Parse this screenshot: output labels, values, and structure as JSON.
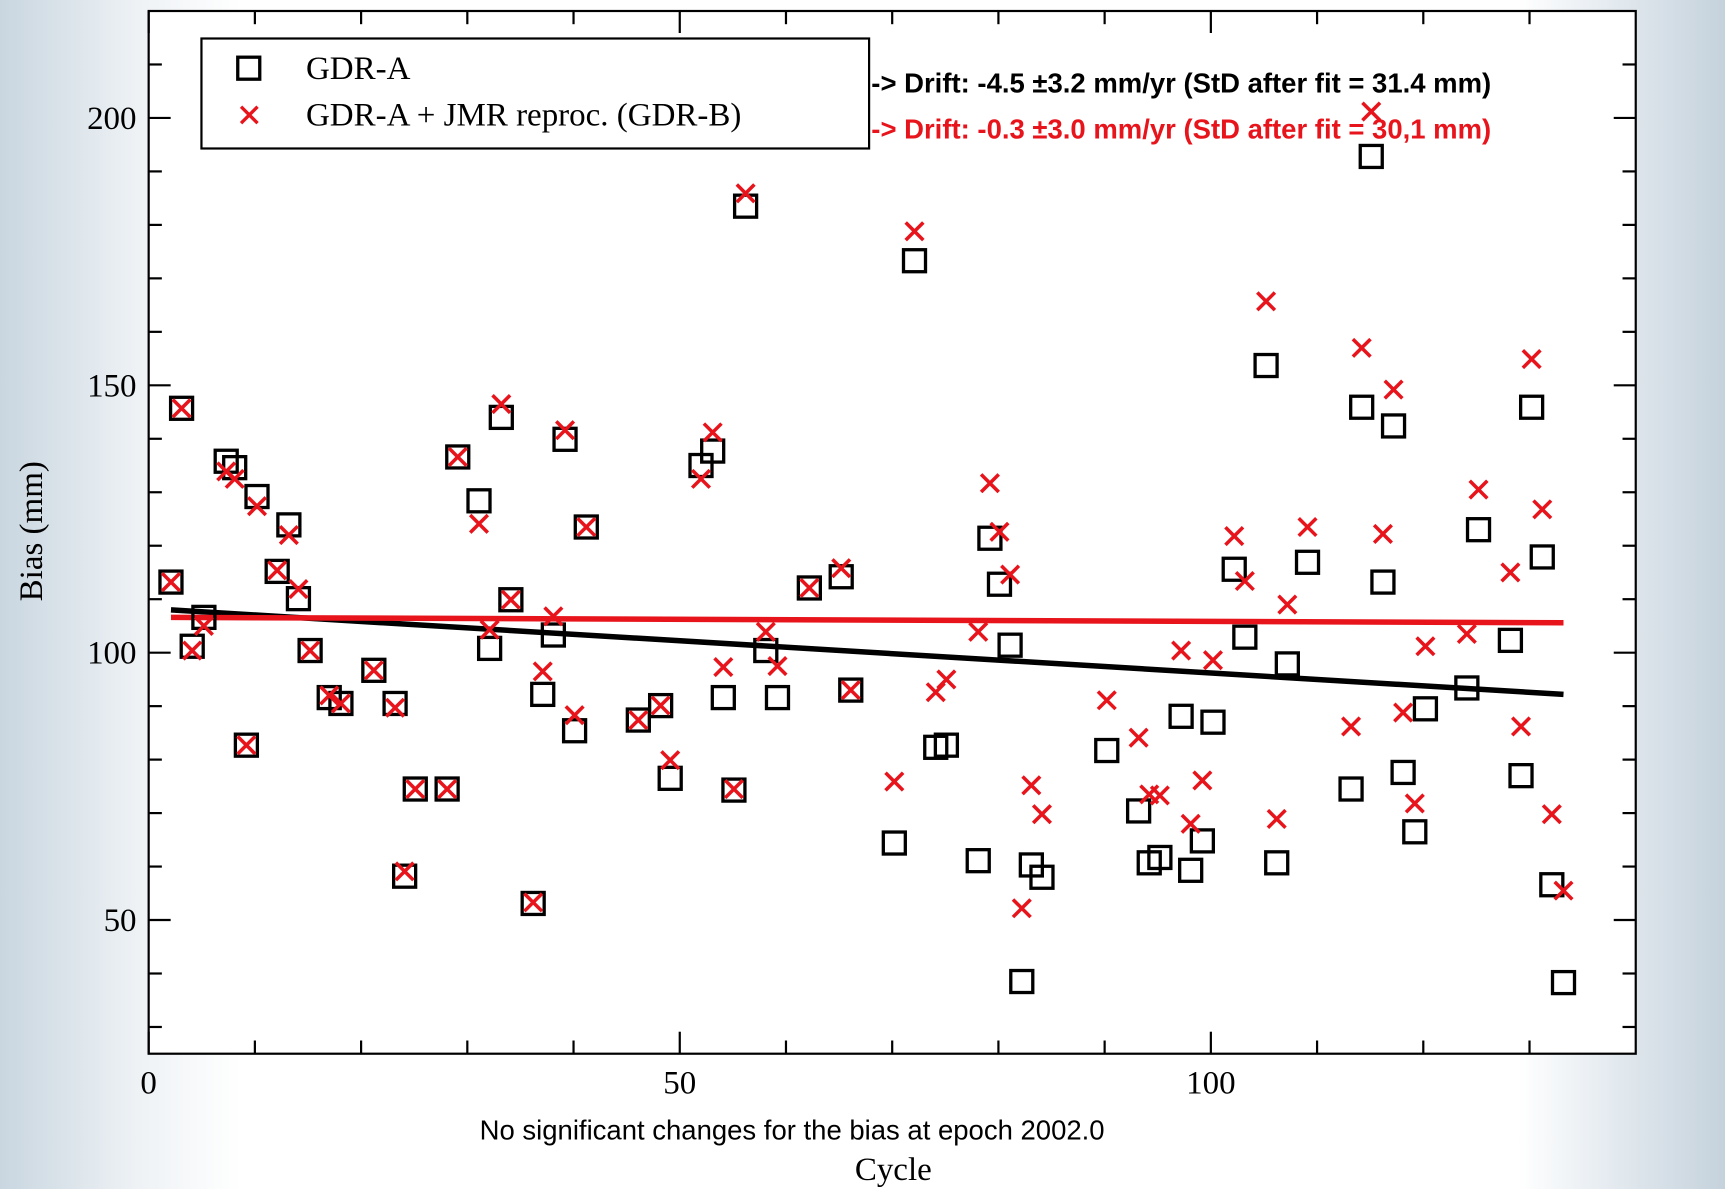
{
  "chart_data": {
    "type": "scatter",
    "x_label": "Cycle",
    "y_label": "Bias (mm)",
    "caption": "No significant changes for the bias at epoch 2002.0",
    "annotations": [
      {
        "text": "-> Drift: -4.5 ±3.2 mm/yr (StD after fit = 31.4 mm)",
        "color": "#000000"
      },
      {
        "text": "-> Drift: -0.3 ±3.0 mm/yr (StD after fit = 30,1 mm)",
        "color": "#e8141c"
      }
    ],
    "xlim": [
      0,
      140
    ],
    "ylim": [
      25,
      220
    ],
    "xticks": [
      0,
      50,
      100
    ],
    "yticks": [
      50,
      100,
      150,
      200
    ],
    "x_minor_ticks": [
      10,
      20,
      30,
      40,
      60,
      70,
      80,
      90,
      110,
      120,
      130
    ],
    "y_minor_ticks": [
      30,
      40,
      60,
      70,
      80,
      90,
      110,
      120,
      130,
      140,
      160,
      170,
      180,
      190,
      210
    ],
    "x": [
      2.1,
      3.1,
      4.1,
      5.2,
      7.3,
      8.1,
      9.2,
      10.2,
      12.1,
      13.2,
      14.1,
      15.2,
      17.0,
      18.1,
      21.2,
      23.2,
      24.1,
      25.1,
      28.1,
      29.1,
      31.1,
      32.1,
      33.2,
      34.1,
      36.2,
      37.1,
      38.1,
      39.2,
      40.1,
      41.2,
      46.1,
      48.2,
      49.1,
      52.0,
      53.1,
      54.1,
      55.1,
      56.2,
      58.1,
      59.2,
      62.2,
      65.2,
      66.1,
      70.2,
      72.1,
      74.1,
      75.1,
      78.1,
      79.2,
      80.1,
      81.1,
      82.2,
      83.1,
      84.1,
      90.2,
      93.2,
      94.2,
      95.2,
      97.2,
      98.1,
      99.2,
      100.2,
      102.2,
      103.2,
      105.2,
      106.2,
      107.2,
      109.1,
      113.2,
      114.2,
      115.1,
      116.2,
      117.2,
      118.1,
      119.2,
      120.2,
      124.1,
      125.2,
      128.2,
      129.2,
      130.2,
      131.2,
      132.1,
      133.2
    ],
    "series": [
      {
        "name": "GDR-A",
        "color": "#000000",
        "marker": "square",
        "values": [
          113.2,
          145.7,
          101.2,
          106.6,
          135.8,
          134.6,
          82.7,
          129.2,
          115.2,
          123.9,
          110.1,
          100.4,
          91.6,
          90.5,
          96.7,
          90.5,
          58.2,
          74.5,
          74.5,
          136.6,
          128.4,
          100.8,
          144.0,
          109.9,
          53.1,
          92.2,
          103.3,
          139.9,
          85.4,
          123.5,
          87.4,
          90.1,
          76.5,
          135.0,
          137.7,
          91.6,
          74.3,
          183.5,
          100.4,
          91.6,
          112.1,
          114.2,
          93.0,
          64.4,
          173.3,
          82.3,
          82.7,
          61.1,
          121.4,
          112.8,
          101.4,
          38.5,
          60.3,
          58.0,
          81.7,
          70.4,
          60.7,
          61.7,
          88.1,
          59.3,
          64.8,
          87.0,
          115.6,
          102.9,
          153.7,
          60.7,
          97.9,
          116.9,
          74.5,
          145.9,
          192.8,
          113.2,
          142.4,
          77.6,
          66.5,
          89.5,
          93.4,
          123.0,
          102.3,
          77.0,
          145.9,
          117.9,
          56.6,
          38.3
        ]
      },
      {
        "name": "GDR-A + JMR reproc. (GDR-B)",
        "color": "#e8141c",
        "marker": "cross",
        "values": [
          113.2,
          145.7,
          100.4,
          105.0,
          133.9,
          132.5,
          82.7,
          127.4,
          115.4,
          122.0,
          111.9,
          100.4,
          92.0,
          90.5,
          96.7,
          89.7,
          59.1,
          74.5,
          74.5,
          136.6,
          124.1,
          104.3,
          146.5,
          109.9,
          53.3,
          96.5,
          106.8,
          141.6,
          88.3,
          123.5,
          87.4,
          90.1,
          79.9,
          132.5,
          141.2,
          97.3,
          74.5,
          185.9,
          103.9,
          97.5,
          112.1,
          115.8,
          93.0,
          75.9,
          178.8,
          92.6,
          95.0,
          103.9,
          131.7,
          122.6,
          114.6,
          52.2,
          75.2,
          69.8,
          91.1,
          84.1,
          73.5,
          73.3,
          100.4,
          68.0,
          76.1,
          98.6,
          121.8,
          113.4,
          165.7,
          68.9,
          109.0,
          123.5,
          86.2,
          157.0,
          201.2,
          122.2,
          149.2,
          88.8,
          71.8,
          101.2,
          103.5,
          130.5,
          115.0,
          86.2,
          154.9,
          126.8,
          69.8,
          55.5
        ]
      }
    ],
    "fit_lines": [
      {
        "color": "#000000",
        "x": [
          2.1,
          133.2
        ],
        "values": [
          108.0,
          92.2
        ]
      },
      {
        "color": "#e8141c",
        "x": [
          2.1,
          133.2
        ],
        "values": [
          106.6,
          105.6
        ]
      }
    ]
  }
}
